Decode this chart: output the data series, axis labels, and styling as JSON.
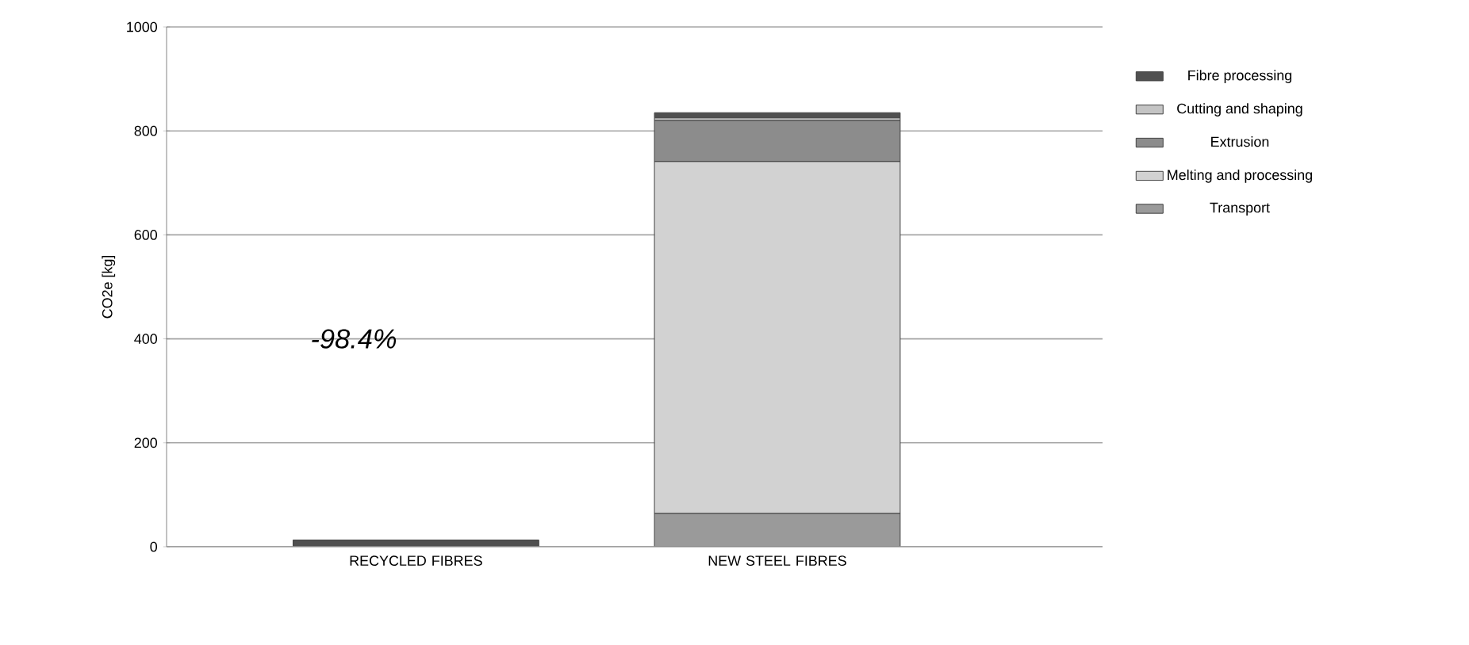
{
  "chart_data": {
    "type": "bar",
    "stacked": true,
    "ylabel": "CO2e [kg]",
    "categories": [
      "RECYCLED FIBRES",
      "NEW STEEL FIBRES"
    ],
    "series": [
      {
        "name": "Transport",
        "color": "#9a9a9a",
        "values": [
          0,
          64
        ]
      },
      {
        "name": "Melting and processing",
        "color": "#d2d2d2",
        "values": [
          0,
          677
        ]
      },
      {
        "name": "Extrusion",
        "color": "#8c8c8c",
        "values": [
          0,
          79
        ]
      },
      {
        "name": "Cutting and shaping",
        "color": "#c4c4c4",
        "values": [
          0,
          5
        ]
      },
      {
        "name": "Fibre processing",
        "color": "#505050",
        "values": [
          13,
          10
        ]
      }
    ],
    "ylim": [
      0,
      1000
    ],
    "yticks": [
      0,
      200,
      400,
      600,
      800,
      1000
    ],
    "grid": "y",
    "legend": "right",
    "annotations": [
      "-98.4%"
    ]
  }
}
